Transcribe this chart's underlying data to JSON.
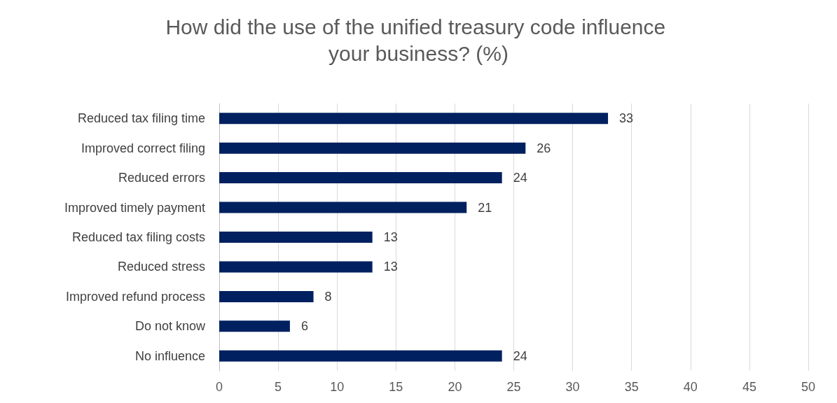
{
  "chart_data": {
    "type": "bar",
    "orientation": "horizontal",
    "title": "How did the use of the unified treasury code influence your business? (%)",
    "categories": [
      "Reduced tax filing time",
      "Improved correct filing",
      "Reduced errors",
      "Improved timely payment",
      "Reduced tax filing costs",
      "Reduced stress",
      "Improved refund process",
      "Do not know",
      "No influence"
    ],
    "values": [
      33,
      26,
      24,
      21,
      13,
      13,
      8,
      6,
      24
    ],
    "color": "#002060",
    "xlim": [
      0,
      50
    ],
    "xticks": [
      0,
      5,
      10,
      15,
      20,
      25,
      30,
      35,
      40,
      45,
      50
    ],
    "grid": "x",
    "data_labels": true
  }
}
